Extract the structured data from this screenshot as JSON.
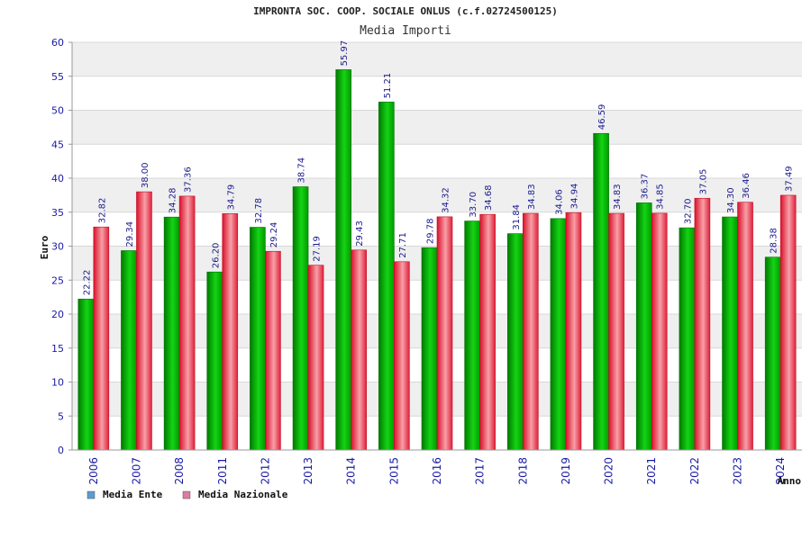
{
  "chart_data": {
    "type": "bar",
    "title": "IMPRONTA SOC. COOP. SOCIALE ONLUS (c.f.02724500125)",
    "subtitle": "Media Importi",
    "ylabel": "Euro",
    "xlabel": "Anno",
    "ylim": [
      0,
      60
    ],
    "yticks": [
      "0",
      "5",
      "10",
      "15",
      "20",
      "25",
      "30",
      "35",
      "40",
      "45",
      "50",
      "55",
      "60"
    ],
    "categories": [
      "2006",
      "2007",
      "2008",
      "2011",
      "2012",
      "2013",
      "2014",
      "2015",
      "2016",
      "2017",
      "2018",
      "2019",
      "2020",
      "2021",
      "2022",
      "2023",
      "2024"
    ],
    "series": [
      {
        "name": "Media Ente",
        "values": [
          22.22,
          29.34,
          34.28,
          26.2,
          32.78,
          38.74,
          55.97,
          51.21,
          29.78,
          33.7,
          31.84,
          34.06,
          46.59,
          36.37,
          32.7,
          34.3,
          28.38
        ],
        "labels": [
          "22.22",
          "29.34",
          "34.28",
          "26.20",
          "32.78",
          "38.74",
          "55.97",
          "51.21",
          "29.78",
          "33.70",
          "31.84",
          "34.06",
          "46.59",
          "36.37",
          "32.70",
          "34.30",
          "28.38"
        ]
      },
      {
        "name": "Media Nazionale",
        "values": [
          32.82,
          38.0,
          37.36,
          34.79,
          29.24,
          27.19,
          29.43,
          27.71,
          34.32,
          34.68,
          34.83,
          34.94,
          34.83,
          34.85,
          37.05,
          36.46,
          37.49
        ],
        "labels": [
          "32.82",
          "38.00",
          "37.36",
          "34.79",
          "29.24",
          "27.19",
          "29.43",
          "27.71",
          "34.32",
          "34.68",
          "34.83",
          "34.94",
          "34.83",
          "34.85",
          "37.05",
          "36.46",
          "37.49"
        ]
      }
    ],
    "legend": [
      {
        "label": "Media Ente",
        "color": "#5b9bd5"
      },
      {
        "label": "Media Nazionale",
        "color": "#e07aa0"
      }
    ],
    "legend_position": "bottom-left",
    "grid": true,
    "colors": {
      "ente": "#00b800",
      "nazionale": "#e8283c",
      "band": "#efefef",
      "axis": "#1a1aa6"
    }
  }
}
